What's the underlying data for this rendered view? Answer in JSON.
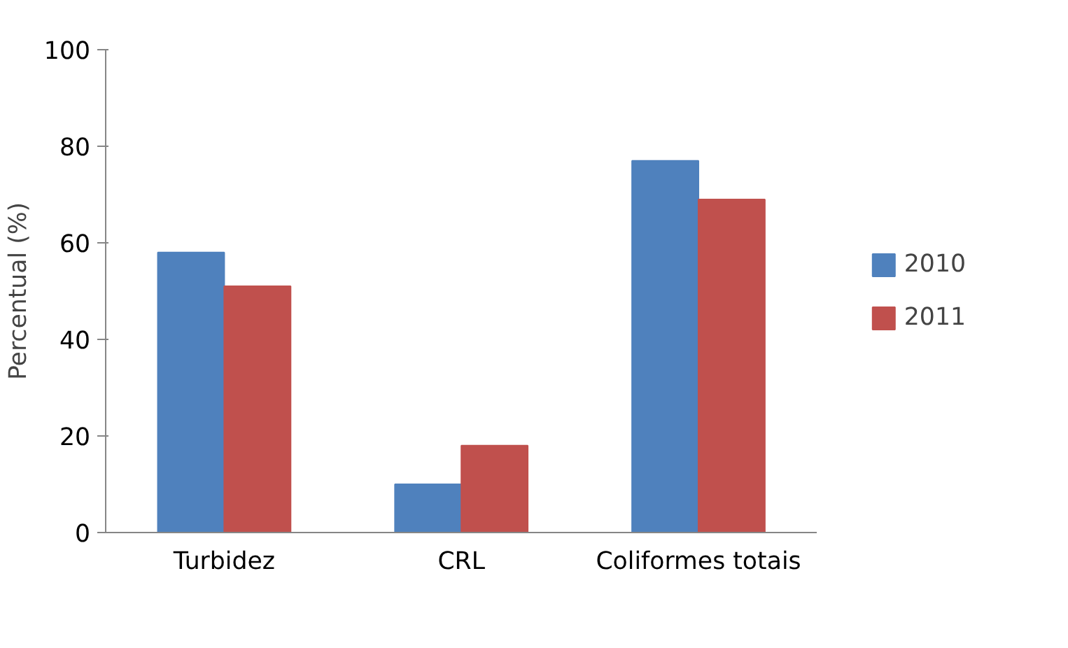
{
  "chart_data": {
    "type": "bar",
    "ylabel": "Percentual (%)",
    "categories": [
      "Turbidez",
      "CRL",
      "Coliformes totais"
    ],
    "series": [
      {
        "name": "2010",
        "color": "#4f81bd",
        "values": [
          58,
          10,
          77
        ]
      },
      {
        "name": "2011",
        "color": "#c0504d",
        "values": [
          51,
          18,
          69
        ]
      }
    ],
    "ylim": [
      0,
      100
    ],
    "yticks": [
      0,
      20,
      40,
      60,
      80,
      100
    ],
    "grid": false,
    "legend": "right"
  }
}
